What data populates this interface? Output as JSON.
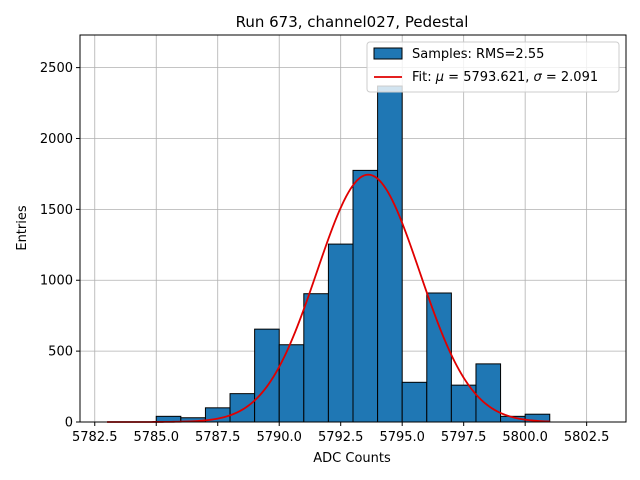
{
  "chart_data": {
    "type": "bar",
    "title": "Run 673, channel027, Pedestal",
    "xlabel": "ADC Counts",
    "ylabel": "Entries",
    "xlim": [
      5781.9,
      5804.1
    ],
    "ylim": [
      0,
      2730
    ],
    "x_ticks": [
      5782.5,
      5785.0,
      5787.5,
      5790.0,
      5792.5,
      5795.0,
      5797.5,
      5800.0,
      5802.5
    ],
    "x_tick_labels": [
      "5782.5",
      "5785.0",
      "5787.5",
      "5790.0",
      "5792.5",
      "5795.0",
      "5797.5",
      "5800.0",
      "5802.5"
    ],
    "y_ticks": [
      0,
      500,
      1000,
      1500,
      2000,
      2500
    ],
    "y_tick_labels": [
      "0",
      "500",
      "1000",
      "1500",
      "2000",
      "2500"
    ],
    "grid": true,
    "legend_position": "top-right",
    "histogram": {
      "name": "Samples: RMS=2.55",
      "color": "#1f77b4",
      "edge_color": "#000000",
      "bin_edges": [
        5785,
        5786,
        5787,
        5788,
        5789,
        5790,
        5791,
        5792,
        5793,
        5794,
        5795,
        5796,
        5797,
        5798,
        5799,
        5800,
        5801
      ],
      "values": [
        40,
        30,
        100,
        200,
        655,
        545,
        905,
        1255,
        1775,
        2370,
        280,
        910,
        260,
        410,
        40,
        55
      ]
    },
    "fit": {
      "name_prefix": "Fit: ",
      "mu_label": "μ",
      "mu_value": " = 5793.621, ",
      "sigma_label": "σ",
      "sigma_value": " = 2.091",
      "color": "#e00000",
      "mu": 5793.621,
      "sigma": 2.091,
      "amplitude": 1745,
      "x_range": [
        5783.0,
        5801.0
      ]
    }
  }
}
